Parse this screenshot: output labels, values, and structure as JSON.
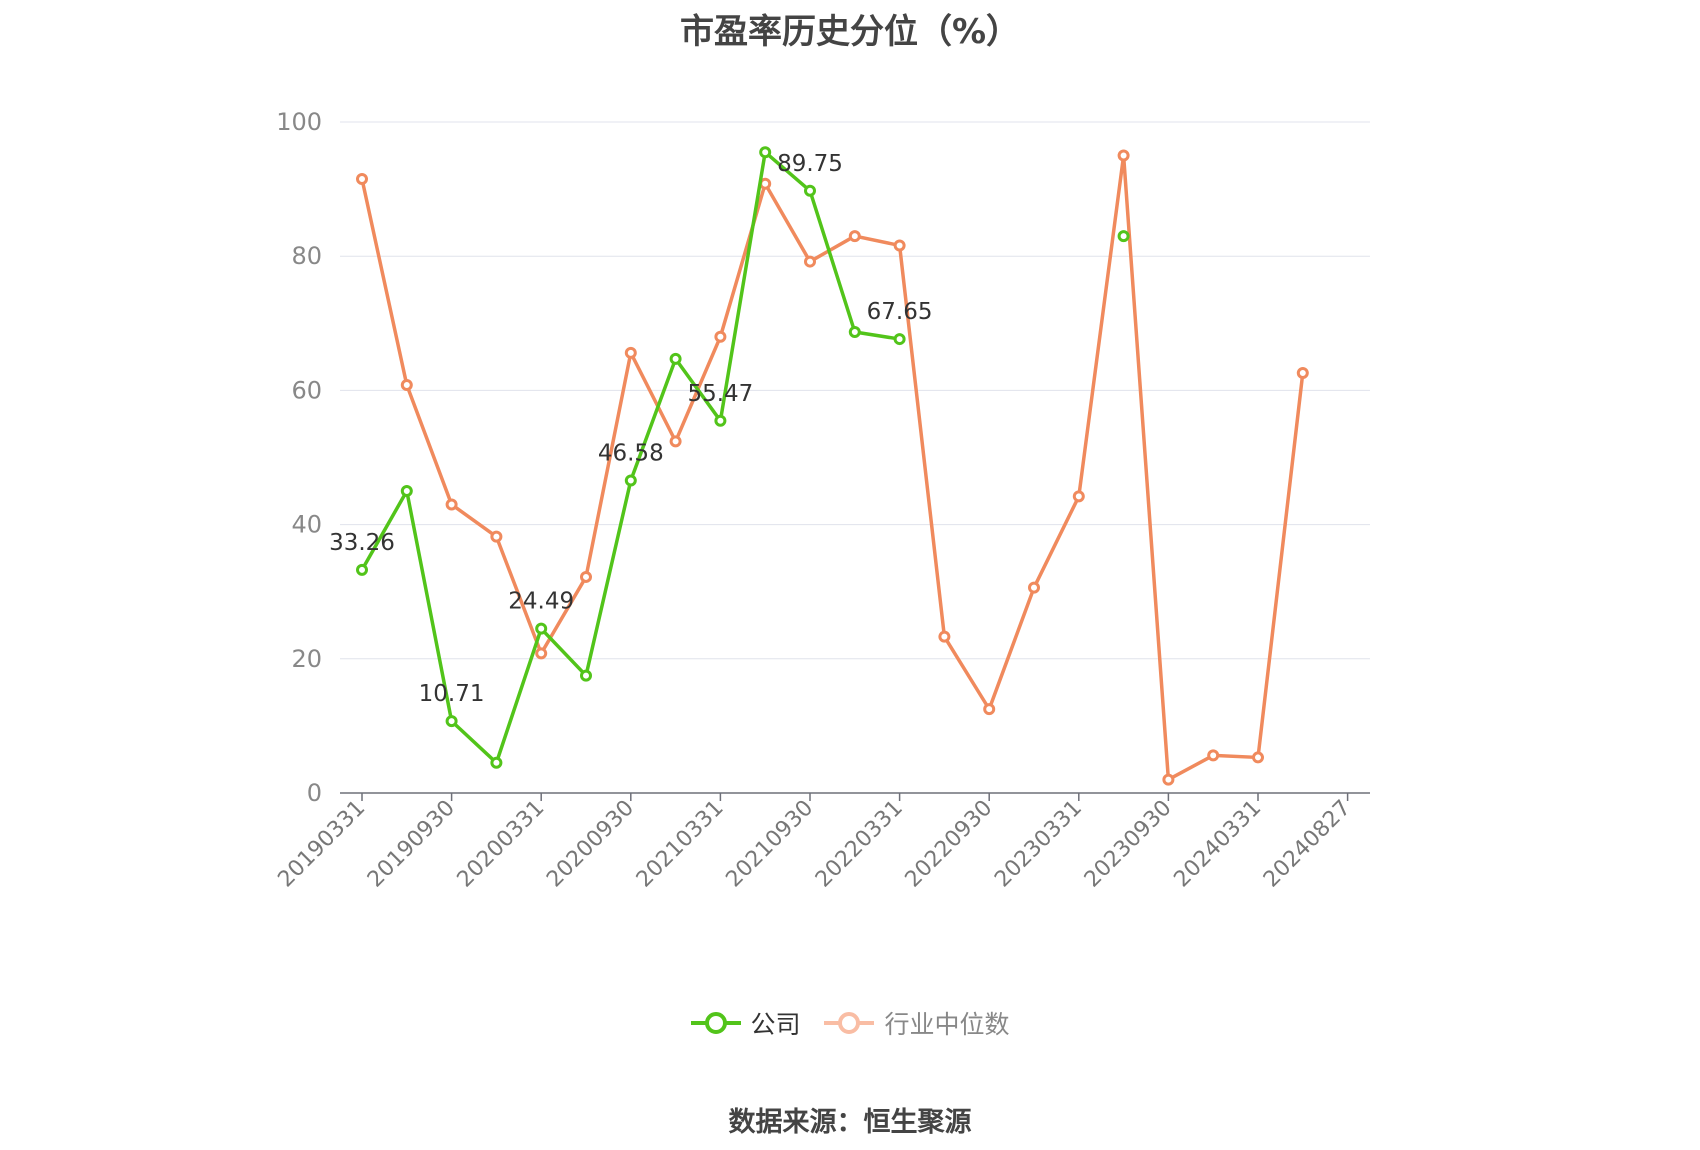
{
  "chart_data": {
    "type": "line",
    "title": "市盈率历史分位（%）",
    "x": [
      "20190331",
      "20190630",
      "20190930",
      "20191231",
      "20200331",
      "20200630",
      "20200930",
      "20201231",
      "20210331",
      "20210630",
      "20210930",
      "20211231",
      "20220331",
      "20220630",
      "20220930",
      "20221231",
      "20230331",
      "20230630",
      "20230930",
      "20231231",
      "20240331",
      "20240630"
    ],
    "tick_labels": [
      "20190331",
      "20190930",
      "20200331",
      "20200930",
      "20210331",
      "20210930",
      "20220331",
      "20220930",
      "20230331",
      "20230930",
      "20240331",
      "20240827"
    ],
    "ylim": [
      0,
      100
    ],
    "yticks": [
      0,
      20,
      40,
      60,
      80,
      100
    ],
    "grid": true,
    "legend_position": "bottom",
    "series": [
      {
        "name": "公司",
        "color": "#52c41a",
        "values": [
          33.26,
          45.0,
          10.71,
          4.5,
          24.49,
          17.5,
          46.58,
          64.7,
          55.47,
          95.5,
          89.75,
          68.7,
          67.65,
          null,
          null,
          null,
          null,
          83.0,
          null,
          null,
          null,
          null
        ],
        "labels": [
          {
            "index": 0,
            "text": "33.26"
          },
          {
            "index": 2,
            "text": "10.71"
          },
          {
            "index": 4,
            "text": "24.49"
          },
          {
            "index": 6,
            "text": "46.58"
          },
          {
            "index": 8,
            "text": "55.47"
          },
          {
            "index": 10,
            "text": "89.75"
          },
          {
            "index": 12,
            "text": "67.65"
          }
        ]
      },
      {
        "name": "行业中位数",
        "color": "#f08a5d",
        "values": [
          91.5,
          60.8,
          43.0,
          38.2,
          20.8,
          32.2,
          65.6,
          52.4,
          68.0,
          90.8,
          79.2,
          83.0,
          81.6,
          23.3,
          12.5,
          30.6,
          44.2,
          95.0,
          2.0,
          5.6,
          5.3,
          62.6
        ],
        "labels": []
      }
    ]
  },
  "source": "数据来源：恒生聚源"
}
